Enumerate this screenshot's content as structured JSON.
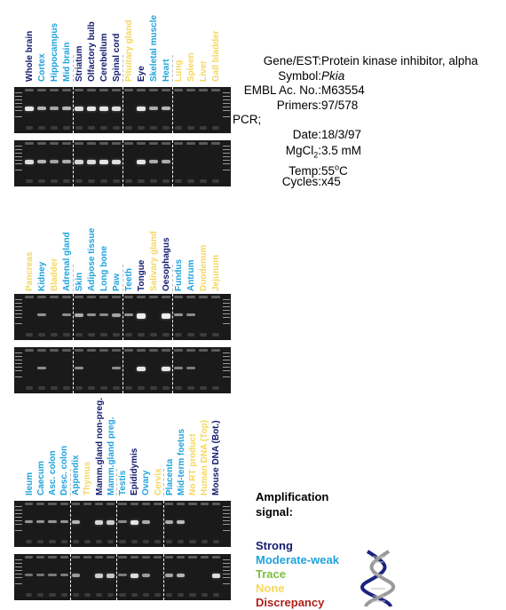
{
  "colors": {
    "strong": "#111a6e",
    "moderate_weak": "#1ea3dc",
    "trace": "#7ac043",
    "none": "#f5d75e",
    "discrepancy": "#b0201a"
  },
  "info": {
    "rows": [
      {
        "key": "Gene/EST:",
        "value": "Protein kinase inhibitor, alpha"
      },
      {
        "key": "Symbol:",
        "value": "Pkia",
        "italic": true
      },
      {
        "key": "EMBL Ac. No.:",
        "value": "M63554"
      },
      {
        "key": "Primers:",
        "value": "97/578"
      },
      {
        "key": "PCR;",
        "value": ""
      },
      {
        "key": "Date:",
        "value": "18/3/97"
      },
      {
        "key": "MgCl",
        "sub": "2",
        "key_tail": ":",
        "value": "3.5 mM"
      },
      {
        "key": "Temp:",
        "value": "55",
        "sup": "o",
        "value_tail": "C"
      },
      {
        "key": "Cycles:",
        "value": "x45"
      }
    ]
  },
  "legend": {
    "title_line1": "Amplification",
    "title_line2": "signal:",
    "items": [
      {
        "label": "Strong",
        "level": "strong"
      },
      {
        "label": "Moderate-weak",
        "level": "moderate_weak"
      },
      {
        "label": "Trace",
        "level": "trace"
      },
      {
        "label": "None",
        "level": "none"
      },
      {
        "label": "Discrepancy",
        "level": "discrepancy"
      }
    ]
  },
  "panels": [
    {
      "id": "panel-1",
      "lanes": [
        {
          "label": "Whole brain",
          "level": "strong"
        },
        {
          "label": "Cortex",
          "level": "moderate_weak"
        },
        {
          "label": "Hippocampus",
          "level": "moderate_weak"
        },
        {
          "label": "Mid brain",
          "level": "moderate_weak"
        },
        {
          "label": "Striatum",
          "level": "strong"
        },
        {
          "label": "Olfactory bulb",
          "level": "strong"
        },
        {
          "label": "Cerebellum",
          "level": "strong"
        },
        {
          "label": "Spinal cord",
          "level": "strong"
        },
        {
          "label": "Pituitary gland",
          "level": "none"
        },
        {
          "label": "Eye",
          "level": "strong"
        },
        {
          "label": "Skeletal muscle",
          "level": "moderate_weak"
        },
        {
          "label": "Heart",
          "level": "moderate_weak"
        },
        {
          "label": "Lung",
          "level": "none"
        },
        {
          "label": "Spleen",
          "level": "none"
        },
        {
          "label": "Liver",
          "level": "none"
        },
        {
          "label": "Gall bladder",
          "level": "none"
        }
      ],
      "dividers_after": [
        3,
        7,
        11
      ]
    },
    {
      "id": "panel-2",
      "lanes": [
        {
          "label": "Pancreas",
          "level": "none"
        },
        {
          "label": "Kidney",
          "level": "moderate_weak"
        },
        {
          "label": "Bladder",
          "level": "none"
        },
        {
          "label": "Adrenal gland",
          "level": "moderate_weak"
        },
        {
          "label": "Skin",
          "level": "moderate_weak"
        },
        {
          "label": "Adipose tissue",
          "level": "moderate_weak"
        },
        {
          "label": "Long bone",
          "level": "moderate_weak"
        },
        {
          "label": "Paw",
          "level": "moderate_weak"
        },
        {
          "label": "Teeth",
          "level": "moderate_weak"
        },
        {
          "label": "Tongue",
          "level": "strong"
        },
        {
          "label": "Salivary gland",
          "level": "none"
        },
        {
          "label": "Oesophagus",
          "level": "strong"
        },
        {
          "label": "Fundus",
          "level": "moderate_weak"
        },
        {
          "label": "Antrum",
          "level": "moderate_weak"
        },
        {
          "label": "Duodenum",
          "level": "none"
        },
        {
          "label": "Jejunum",
          "level": "none"
        }
      ],
      "dividers_after": [
        3,
        7,
        11
      ]
    },
    {
      "id": "panel-3",
      "lanes": [
        {
          "label": "Ileum",
          "level": "moderate_weak"
        },
        {
          "label": "Caecum",
          "level": "moderate_weak"
        },
        {
          "label": "Asc. colon",
          "level": "moderate_weak"
        },
        {
          "label": "Desc. colon",
          "level": "moderate_weak"
        },
        {
          "label": "Appendix",
          "level": "moderate_weak"
        },
        {
          "label": "Thymus",
          "level": "none"
        },
        {
          "label": "Mamm.gland non-preg.",
          "level": "strong"
        },
        {
          "label": "Mamm.gland preg.",
          "level": "moderate_weak"
        },
        {
          "label": "Testis",
          "level": "moderate_weak"
        },
        {
          "label": "Epididymis",
          "level": "strong"
        },
        {
          "label": "Ovary",
          "level": "moderate_weak"
        },
        {
          "label": "Cervix",
          "level": "none"
        },
        {
          "label": "Placenta",
          "level": "moderate_weak"
        },
        {
          "label": "Mid-term foetus",
          "level": "moderate_weak"
        },
        {
          "label": "No RT product",
          "level": "none"
        },
        {
          "label": "Human DNA (Top)",
          "level": "none"
        },
        {
          "label": "Mouse DNA (Bot.)",
          "level": "strong"
        }
      ],
      "dividers_after": [
        3,
        7,
        11
      ]
    }
  ],
  "gels": [
    {
      "panel": 0,
      "bands": [
        0.85,
        0.55,
        0.45,
        0.55,
        0.8,
        0.85,
        0.85,
        0.8,
        0.0,
        0.85,
        0.5,
        0.55,
        0.0,
        0.0,
        0.0,
        0.0
      ]
    },
    {
      "panel": 0,
      "bands": [
        0.8,
        0.55,
        0.45,
        0.5,
        0.75,
        0.8,
        0.85,
        0.8,
        0.0,
        0.85,
        0.5,
        0.5,
        0.0,
        0.0,
        0.0,
        0.0
      ]
    },
    {
      "panel": 1,
      "bands": [
        0.0,
        0.35,
        0.0,
        0.3,
        0.5,
        0.35,
        0.3,
        0.45,
        0.35,
        0.9,
        0.0,
        0.9,
        0.35,
        0.3,
        0.0,
        0.0
      ]
    },
    {
      "panel": 1,
      "bands": [
        0.0,
        0.3,
        0.0,
        0.0,
        0.3,
        0.0,
        0.0,
        0.3,
        0.0,
        0.85,
        0.0,
        0.85,
        0.25,
        0.2,
        0.0,
        0.0
      ]
    },
    {
      "panel": 2,
      "bands": [
        0.35,
        0.35,
        0.35,
        0.35,
        0.55,
        0.0,
        0.75,
        0.7,
        0.3,
        0.85,
        0.5,
        0.0,
        0.5,
        0.6,
        0.0,
        0.0,
        0.0
      ]
    },
    {
      "panel": 2,
      "bands": [
        0.15,
        0.15,
        0.2,
        0.2,
        0.4,
        0.0,
        0.7,
        0.65,
        0.2,
        0.8,
        0.4,
        0.0,
        0.45,
        0.55,
        0.0,
        0.0,
        0.8
      ]
    }
  ]
}
